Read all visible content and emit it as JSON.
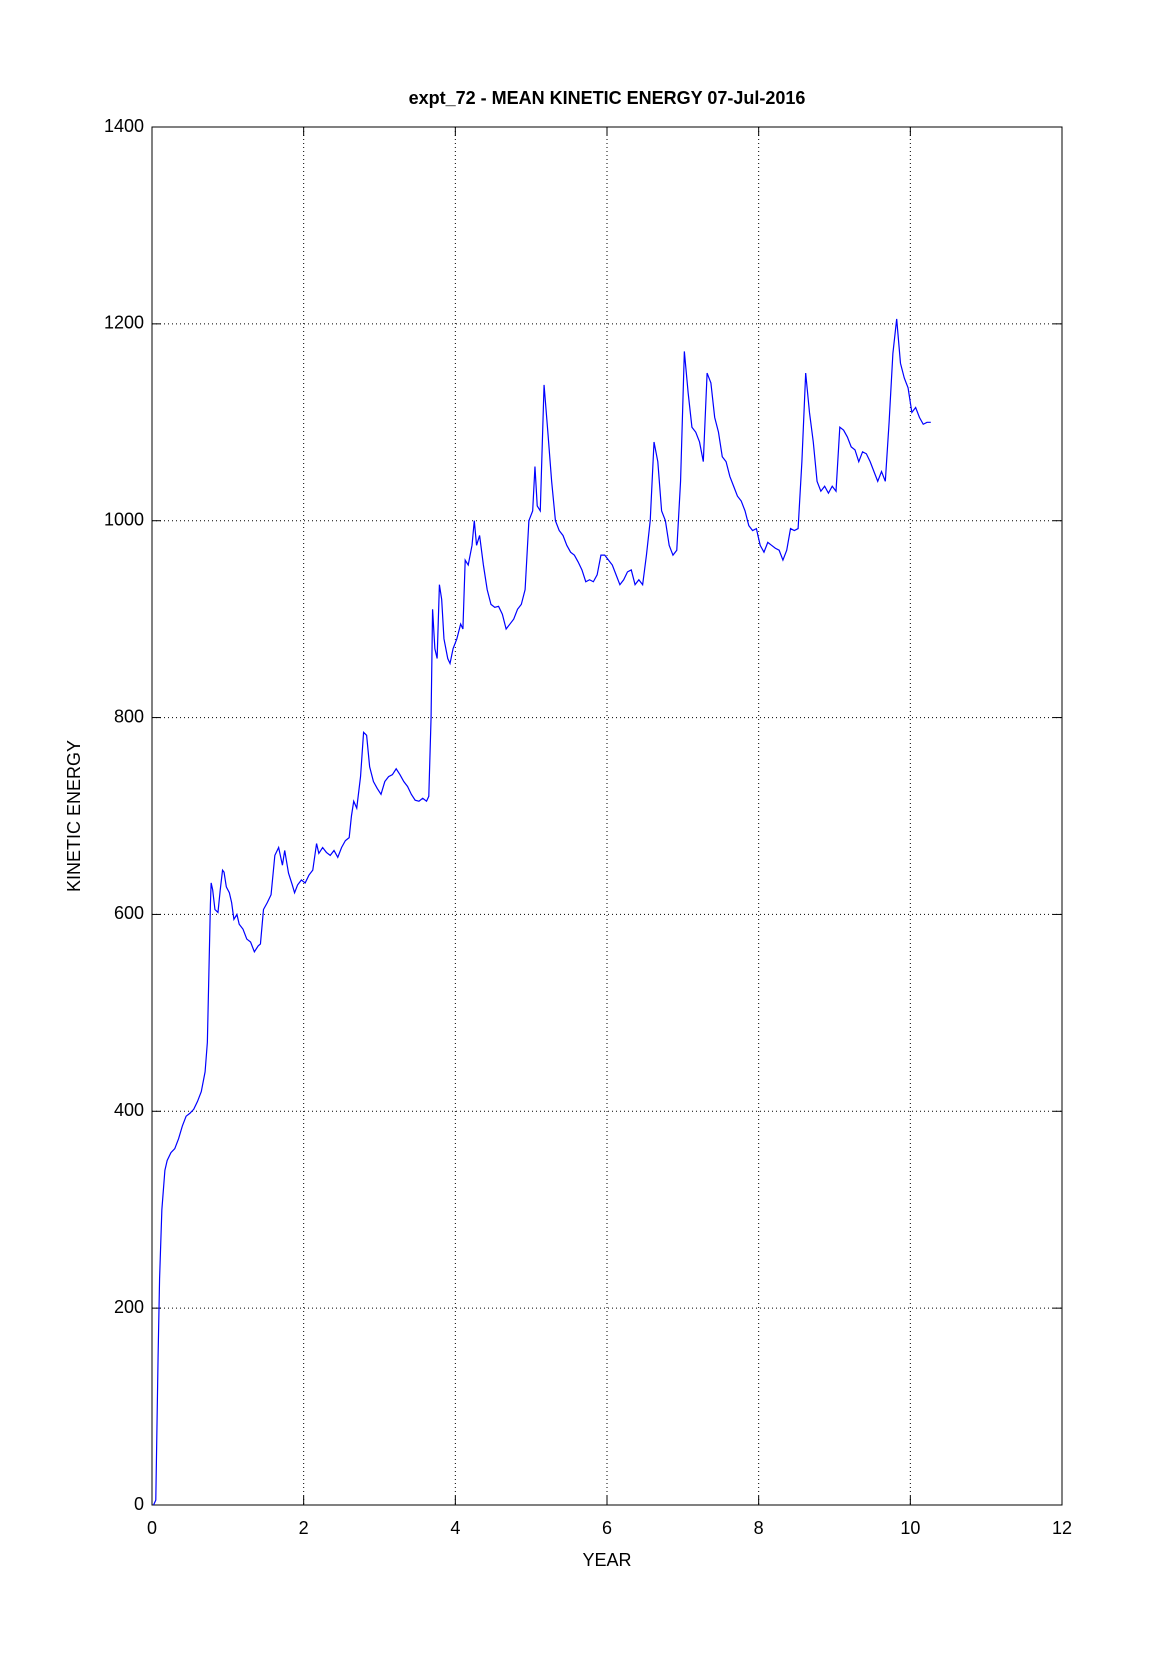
{
  "chart_data": {
    "type": "line",
    "title": "expt_72 - MEAN KINETIC ENERGY 07-Jul-2016",
    "xlabel": "YEAR",
    "ylabel": "KINETIC ENERGY",
    "xlim": [
      0,
      12
    ],
    "xticks": [
      0,
      2,
      4,
      6,
      8,
      10,
      12
    ],
    "ylim": [
      0,
      1400
    ],
    "yticks": [
      0,
      200,
      400,
      600,
      800,
      1000,
      1200,
      1400
    ],
    "grid": true,
    "x": [
      0.02,
      0.05,
      0.08,
      0.1,
      0.13,
      0.17,
      0.2,
      0.25,
      0.3,
      0.35,
      0.4,
      0.45,
      0.5,
      0.55,
      0.6,
      0.65,
      0.7,
      0.73,
      0.75,
      0.77,
      0.78,
      0.8,
      0.83,
      0.87,
      0.9,
      0.93,
      0.95,
      0.98,
      1.02,
      1.05,
      1.08,
      1.12,
      1.15,
      1.2,
      1.25,
      1.3,
      1.35,
      1.4,
      1.43,
      1.47,
      1.52,
      1.57,
      1.62,
      1.67,
      1.72,
      1.75,
      1.8,
      1.85,
      1.88,
      1.92,
      1.97,
      2.02,
      2.07,
      2.12,
      2.17,
      2.2,
      2.25,
      2.3,
      2.35,
      2.4,
      2.45,
      2.5,
      2.55,
      2.6,
      2.63,
      2.66,
      2.7,
      2.75,
      2.79,
      2.83,
      2.87,
      2.92,
      2.97,
      3.02,
      3.07,
      3.12,
      3.17,
      3.22,
      3.27,
      3.32,
      3.37,
      3.42,
      3.47,
      3.52,
      3.57,
      3.62,
      3.65,
      3.68,
      3.7,
      3.73,
      3.76,
      3.79,
      3.82,
      3.85,
      3.9,
      3.93,
      3.97,
      4.02,
      4.07,
      4.1,
      4.13,
      4.17,
      4.22,
      4.25,
      4.28,
      4.32,
      4.37,
      4.42,
      4.47,
      4.52,
      4.57,
      4.62,
      4.67,
      4.72,
      4.77,
      4.82,
      4.87,
      4.92,
      4.97,
      5.02,
      5.05,
      5.08,
      5.12,
      5.17,
      5.22,
      5.27,
      5.32,
      5.37,
      5.42,
      5.47,
      5.52,
      5.57,
      5.62,
      5.67,
      5.72,
      5.77,
      5.82,
      5.87,
      5.92,
      5.97,
      6.02,
      6.07,
      6.12,
      6.17,
      6.22,
      6.27,
      6.32,
      6.37,
      6.42,
      6.47,
      6.52,
      6.57,
      6.62,
      6.67,
      6.72,
      6.77,
      6.82,
      6.87,
      6.92,
      6.97,
      7.02,
      7.07,
      7.12,
      7.17,
      7.22,
      7.27,
      7.32,
      7.37,
      7.42,
      7.47,
      7.52,
      7.57,
      7.62,
      7.67,
      7.72,
      7.77,
      7.82,
      7.87,
      7.92,
      7.97,
      8.02,
      8.07,
      8.12,
      8.17,
      8.22,
      8.27,
      8.32,
      8.37,
      8.42,
      8.47,
      8.52,
      8.57,
      8.62,
      8.67,
      8.72,
      8.77,
      8.82,
      8.87,
      8.92,
      8.97,
      9.02,
      9.07,
      9.12,
      9.17,
      9.22,
      9.27,
      9.32,
      9.37,
      9.42,
      9.47,
      9.52,
      9.57,
      9.62,
      9.67,
      9.72,
      9.77,
      9.82,
      9.87,
      9.92,
      9.97,
      10.02,
      10.07,
      10.12,
      10.17,
      10.22,
      10.27
    ],
    "series": [
      {
        "name": "kinetic energy",
        "color": "#0000ff",
        "values": [
          0,
          5,
          150,
          230,
          300,
          340,
          350,
          358,
          362,
          372,
          385,
          395,
          398,
          402,
          410,
          420,
          440,
          470,
          540,
          610,
          632,
          625,
          605,
          602,
          625,
          645,
          643,
          628,
          622,
          612,
          595,
          600,
          590,
          585,
          575,
          572,
          562,
          568,
          570,
          605,
          612,
          620,
          660,
          668,
          650,
          665,
          642,
          630,
          622,
          630,
          635,
          632,
          640,
          645,
          672,
          662,
          668,
          663,
          660,
          665,
          658,
          668,
          675,
          678,
          700,
          715,
          708,
          740,
          785,
          782,
          750,
          735,
          728,
          722,
          735,
          740,
          742,
          748,
          742,
          735,
          730,
          722,
          716,
          715,
          718,
          715,
          720,
          800,
          910,
          870,
          860,
          935,
          920,
          880,
          860,
          855,
          870,
          880,
          895,
          890,
          960,
          955,
          975,
          1000,
          975,
          985,
          955,
          930,
          915,
          912,
          913,
          905,
          890,
          895,
          900,
          910,
          915,
          930,
          1000,
          1010,
          1055,
          1015,
          1010,
          1138,
          1090,
          1040,
          1000,
          990,
          985,
          975,
          968,
          965,
          958,
          950,
          938,
          940,
          938,
          945,
          965,
          965,
          960,
          955,
          945,
          935,
          940,
          948,
          950,
          935,
          940,
          935,
          965,
          1000,
          1080,
          1060,
          1010,
          1000,
          975,
          965,
          970,
          1040,
          1172,
          1130,
          1095,
          1090,
          1080,
          1060,
          1150,
          1140,
          1105,
          1090,
          1065,
          1060,
          1045,
          1035,
          1025,
          1020,
          1010,
          995,
          990,
          992,
          975,
          968,
          978,
          975,
          972,
          970,
          960,
          970,
          992,
          990,
          992,
          1060,
          1150,
          1110,
          1080,
          1040,
          1030,
          1035,
          1028,
          1035,
          1030,
          1095,
          1092,
          1085,
          1075,
          1072,
          1060,
          1070,
          1068,
          1060,
          1050,
          1040,
          1050,
          1040,
          1100,
          1170,
          1205,
          1160,
          1145,
          1135,
          1110,
          1115,
          1105,
          1098,
          1100,
          1100
        ]
      }
    ]
  }
}
